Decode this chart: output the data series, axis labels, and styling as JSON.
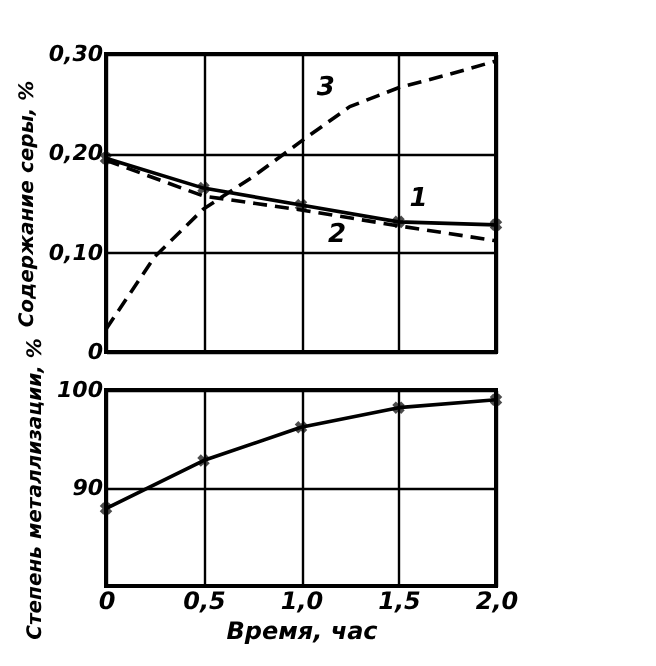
{
  "chart_data": [
    {
      "type": "line",
      "ylabel": "Содержание серы, %",
      "xlim": [
        0,
        2
      ],
      "xticks": [
        0,
        0.5,
        1,
        1.5,
        2
      ],
      "ylim": [
        0,
        0.3
      ],
      "yticks": [
        0,
        {
          "value": 0.1,
          "label": "0,10"
        },
        {
          "value": 0.2,
          "label": "0,20"
        },
        {
          "value": 0.3,
          "label": "0,30"
        }
      ],
      "grid": true,
      "tick_labels": "y",
      "series": [
        {
          "color": "#000000",
          "line_style": "solid",
          "marker": "cross",
          "x": [
            0,
            0.5,
            1,
            1.5,
            2
          ],
          "values": [
            0.195,
            0.165,
            0.148,
            0.131,
            0.128
          ]
        },
        {
          "color": "#000000",
          "line_style": "dashed",
          "x": [
            0,
            0.5,
            1,
            1.5,
            2
          ],
          "values": [
            0.193,
            0.157,
            0.143,
            0.127,
            0.112
          ]
        },
        {
          "color": "#000000",
          "line_style": "dashed",
          "x": [
            0,
            0.25,
            0.5,
            0.75,
            1,
            1.25,
            1.5,
            1.75,
            2
          ],
          "values": [
            0.023,
            0.096,
            0.144,
            0.176,
            0.212,
            0.247,
            0.266,
            0.279,
            0.293
          ]
        }
      ],
      "annotations": [
        "1",
        "2",
        "3"
      ]
    },
    {
      "type": "line",
      "xlabel": "Время, час",
      "ylabel": "Степень металлизации, %",
      "xlim": [
        0,
        2
      ],
      "xticks": [
        0,
        {
          "value": 0.5,
          "label": "0,5"
        },
        {
          "value": 1,
          "label": "1,0"
        },
        {
          "value": 1.5,
          "label": "1,5"
        },
        {
          "value": 2,
          "label": "2,0"
        }
      ],
      "ylim": [
        80,
        100
      ],
      "yticks": [
        90,
        100
      ],
      "grid": true,
      "series": [
        {
          "color": "#000000",
          "line_style": "solid",
          "marker": "cross",
          "x": [
            0,
            0.5,
            1,
            1.5,
            2
          ],
          "values": [
            87.9,
            92.8,
            96.2,
            98.2,
            99.0
          ]
        }
      ]
    }
  ]
}
